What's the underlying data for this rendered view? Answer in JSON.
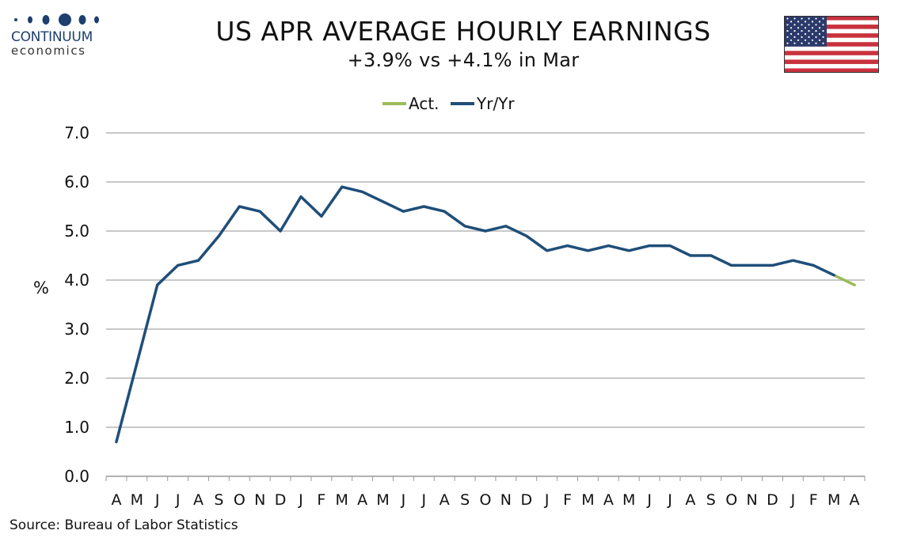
{
  "logo": {
    "brand": "CONTINUUM",
    "sub": "economics"
  },
  "title": "US APR AVERAGE HOURLY EARNINGS",
  "subtitle": "+3.9% vs +4.1% in Mar",
  "source": "Source: Bureau of Labor Statistics",
  "flag_icon": "us-flag-icon",
  "colors": {
    "yoy": "#1f4e79",
    "act": "#9bbb59",
    "grid": "#c8c8c8",
    "brand": "#1d3f6e"
  },
  "chart_data": {
    "type": "line",
    "title": "US APR AVERAGE HOURLY EARNINGS",
    "subtitle": "+3.9% vs +4.1% in Mar",
    "xlabel": "",
    "ylabel": "%",
    "ylim": [
      0,
      7
    ],
    "yticks": [
      "0.0",
      "1.0",
      "2.0",
      "3.0",
      "4.0",
      "5.0",
      "6.0",
      "7.0"
    ],
    "grid": true,
    "legend_position": "top-center",
    "categories": [
      "A",
      "M",
      "J",
      "J",
      "A",
      "S",
      "O",
      "N",
      "D",
      "J",
      "F",
      "M",
      "A",
      "M",
      "J",
      "J",
      "A",
      "S",
      "O",
      "N",
      "D",
      "J",
      "F",
      "M",
      "A",
      "M",
      "J",
      "J",
      "A",
      "S",
      "O",
      "N",
      "D",
      "J",
      "F",
      "M",
      "A"
    ],
    "series": [
      {
        "name": "Act.",
        "color": "#9bbb59",
        "values": [
          null,
          null,
          null,
          null,
          null,
          null,
          null,
          null,
          null,
          null,
          null,
          null,
          null,
          null,
          null,
          null,
          null,
          null,
          null,
          null,
          null,
          null,
          null,
          null,
          null,
          null,
          null,
          null,
          null,
          null,
          null,
          null,
          null,
          null,
          null,
          4.1,
          3.9
        ]
      },
      {
        "name": "Yr/Yr",
        "color": "#1f4e79",
        "values": [
          0.7,
          2.3,
          3.9,
          4.3,
          4.4,
          4.9,
          5.5,
          5.4,
          5.0,
          5.7,
          5.3,
          5.9,
          5.8,
          5.6,
          5.4,
          5.5,
          5.4,
          5.1,
          5.0,
          5.1,
          4.9,
          4.6,
          4.7,
          4.6,
          4.7,
          4.6,
          4.7,
          4.7,
          4.5,
          4.5,
          4.3,
          4.3,
          4.3,
          4.4,
          4.3,
          4.1,
          null
        ]
      }
    ]
  }
}
